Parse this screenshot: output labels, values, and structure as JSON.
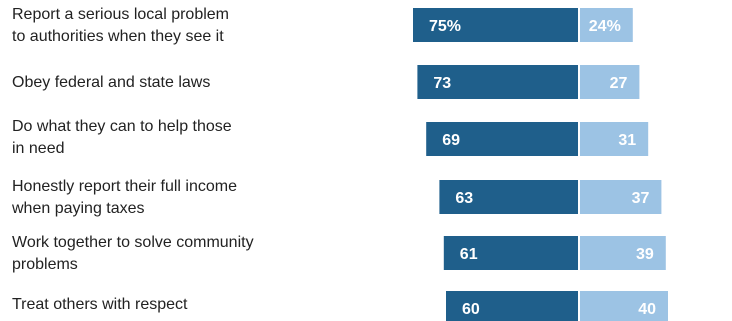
{
  "chart_data": {
    "type": "bar",
    "stacked": "diverging",
    "categories": [
      "Report a serious local problem\nto authorities when they see it",
      "Obey federal and state laws",
      "Do what they can to help those\nin need",
      "Honestly report their full income\nwhen paying taxes",
      "Work together to solve community\nproblems",
      "Treat others with respect"
    ],
    "series": [
      {
        "color": "#1f5f8b",
        "values": [
          75,
          73,
          69,
          63,
          61,
          60
        ],
        "labels": [
          "75%",
          "73",
          "69",
          "63",
          "61",
          "60"
        ]
      },
      {
        "color": "#9cc3e4",
        "values": [
          24,
          27,
          31,
          37,
          39,
          40
        ],
        "labels": [
          "24%",
          "27",
          "31",
          "37",
          "39",
          "40"
        ]
      }
    ],
    "xlim": [
      -100,
      100
    ],
    "grid": false,
    "legend": "none"
  }
}
